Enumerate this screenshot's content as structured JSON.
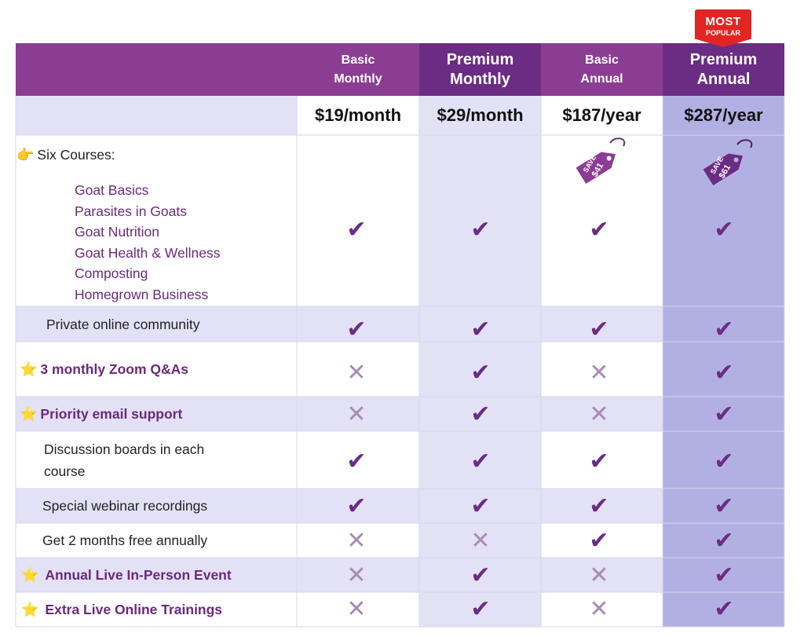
{
  "badge": {
    "line1": "MOST",
    "line2": "POPULAR"
  },
  "columns": [
    {
      "name": "Basic\nMonthly",
      "price": "$19/month"
    },
    {
      "name": "Premium\nMonthly",
      "price": "$29/month"
    },
    {
      "name": "Basic\nAnnual",
      "price": "$187/year",
      "save_line1": "SAVE",
      "save_line2": "$41"
    },
    {
      "name": "Premium\nAnnual",
      "price": "$287/year",
      "save_line1": "SAVE",
      "save_line2": "$61"
    }
  ],
  "courses_heading": "Six Courses:",
  "courses": [
    "Goat Basics",
    "Parasites in Goats",
    "Goat Nutrition",
    "Goat Health & Wellness",
    "Composting",
    "Homegrown Business"
  ],
  "features": [
    {
      "label": "Private online community",
      "marks": [
        true,
        true,
        true,
        true
      ]
    },
    {
      "label": "3 monthly Zoom Q&As",
      "marks": [
        false,
        true,
        false,
        true
      ]
    },
    {
      "label": "Priority email support",
      "marks": [
        false,
        true,
        false,
        true
      ]
    },
    {
      "label": "Discussion boards in each\ncourse",
      "marks": [
        true,
        true,
        true,
        true
      ]
    },
    {
      "label": "Special webinar recordings",
      "marks": [
        true,
        true,
        true,
        true
      ]
    },
    {
      "label": "Get 2 months free annually",
      "marks": [
        false,
        false,
        true,
        true
      ]
    },
    {
      "label": "Annual Live In-Person Event",
      "marks": [
        false,
        true,
        false,
        true
      ]
    },
    {
      "label": "Extra Live Online Trainings",
      "marks": [
        false,
        true,
        false,
        true
      ]
    }
  ],
  "course_marks": [
    true,
    true,
    true,
    true
  ],
  "icons": {
    "pointing": "point-right-icon",
    "star": "star-icon",
    "check": "check-icon",
    "cross": "cross-icon",
    "tag": "price-tag-icon"
  },
  "colors": {
    "header_basic": "#8b3d93",
    "header_premium": "#6b2c84",
    "check": "#6b2c84",
    "cross": "#a68cb7",
    "premium_annual_bg": "#b2b0e2",
    "badge": "#e02623"
  }
}
